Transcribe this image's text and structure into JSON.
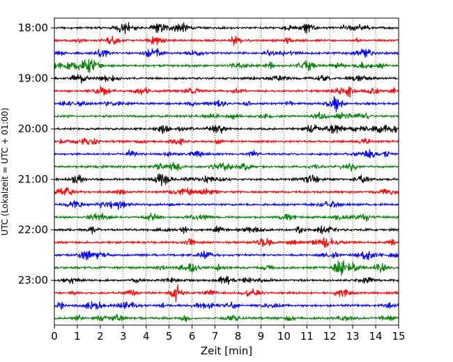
{
  "chart_data": {
    "type": "line",
    "title": "",
    "xlabel": "Zeit  [min]",
    "ylabel": "UTC (Lokalzeit = UTC + 01:00)",
    "xlim": [
      0,
      15
    ],
    "x_ticks": [
      "0",
      "1",
      "2",
      "3",
      "4",
      "5",
      "6",
      "7",
      "8",
      "9",
      "10",
      "11",
      "12",
      "13",
      "14",
      "15"
    ],
    "y_ticks": [
      "18:00",
      "19:00",
      "20:00",
      "21:00",
      "22:00",
      "23:00"
    ],
    "grid": "vertical dotted at each minute",
    "legend": "none",
    "series": [
      {
        "start": "18:00",
        "color": "#000000"
      },
      {
        "start": "18:15",
        "color": "#ff0000"
      },
      {
        "start": "18:30",
        "color": "#0000ff"
      },
      {
        "start": "18:45",
        "color": "#008000"
      },
      {
        "start": "19:00",
        "color": "#000000"
      },
      {
        "start": "19:15",
        "color": "#ff0000"
      },
      {
        "start": "19:30",
        "color": "#0000ff"
      },
      {
        "start": "19:45",
        "color": "#008000"
      },
      {
        "start": "20:00",
        "color": "#000000"
      },
      {
        "start": "20:15",
        "color": "#ff0000"
      },
      {
        "start": "20:30",
        "color": "#0000ff"
      },
      {
        "start": "20:45",
        "color": "#008000"
      },
      {
        "start": "21:00",
        "color": "#000000"
      },
      {
        "start": "21:15",
        "color": "#ff0000"
      },
      {
        "start": "21:30",
        "color": "#0000ff"
      },
      {
        "start": "21:45",
        "color": "#008000"
      },
      {
        "start": "22:00",
        "color": "#000000"
      },
      {
        "start": "22:15",
        "color": "#ff0000"
      },
      {
        "start": "22:30",
        "color": "#0000ff"
      },
      {
        "start": "22:45",
        "color": "#008000"
      },
      {
        "start": "23:00",
        "color": "#000000"
      },
      {
        "start": "23:15",
        "color": "#ff0000"
      },
      {
        "start": "23:30",
        "color": "#0000ff"
      },
      {
        "start": "23:45",
        "color": "#008000"
      }
    ]
  }
}
